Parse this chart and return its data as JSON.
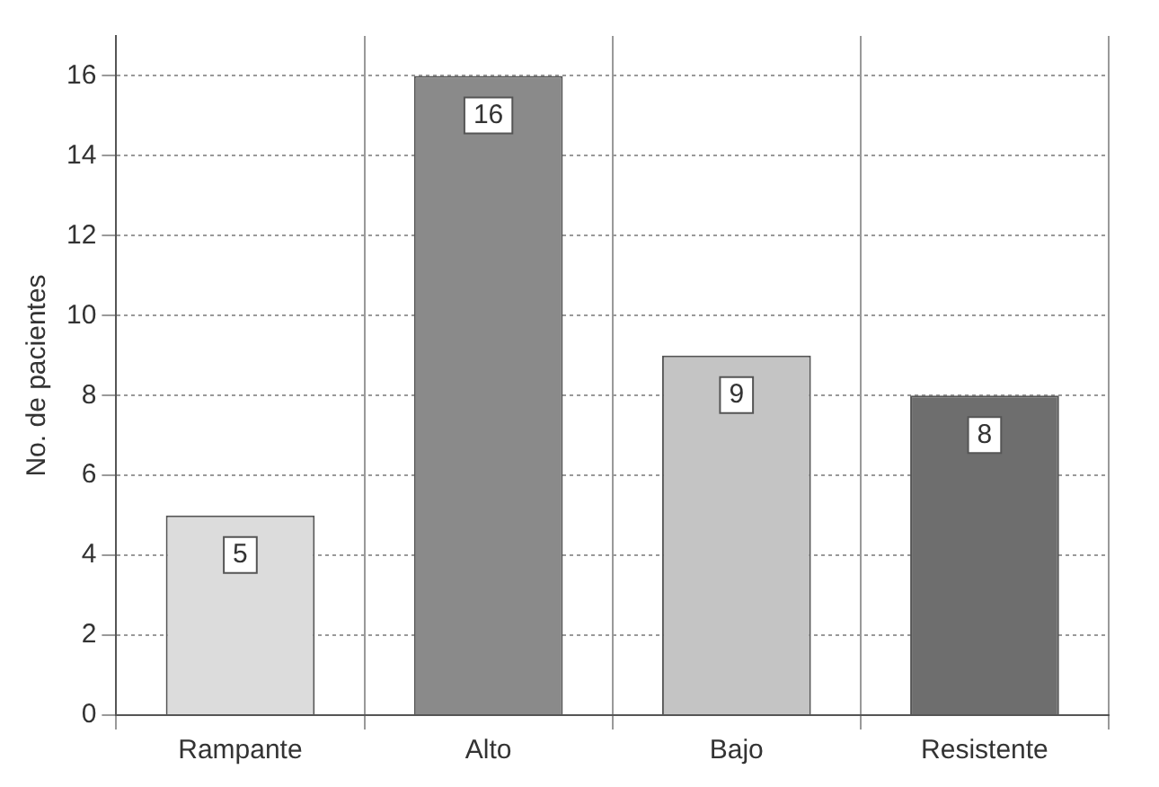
{
  "chart_data": {
    "type": "bar",
    "ylabel": "No. de pacientes",
    "categories": [
      "Rampante",
      "Alto",
      "Bajo",
      "Resistente"
    ],
    "values": [
      5,
      16,
      9,
      8
    ],
    "colors": [
      "#dcdcdc",
      "#8a8a8a",
      "#c4c4c4",
      "#6e6e6e"
    ],
    "ylim": [
      0,
      17
    ],
    "yticks": [
      0,
      2,
      4,
      6,
      8,
      10,
      12,
      14,
      16
    ],
    "grid": true,
    "data_labels": true,
    "legend": false
  }
}
